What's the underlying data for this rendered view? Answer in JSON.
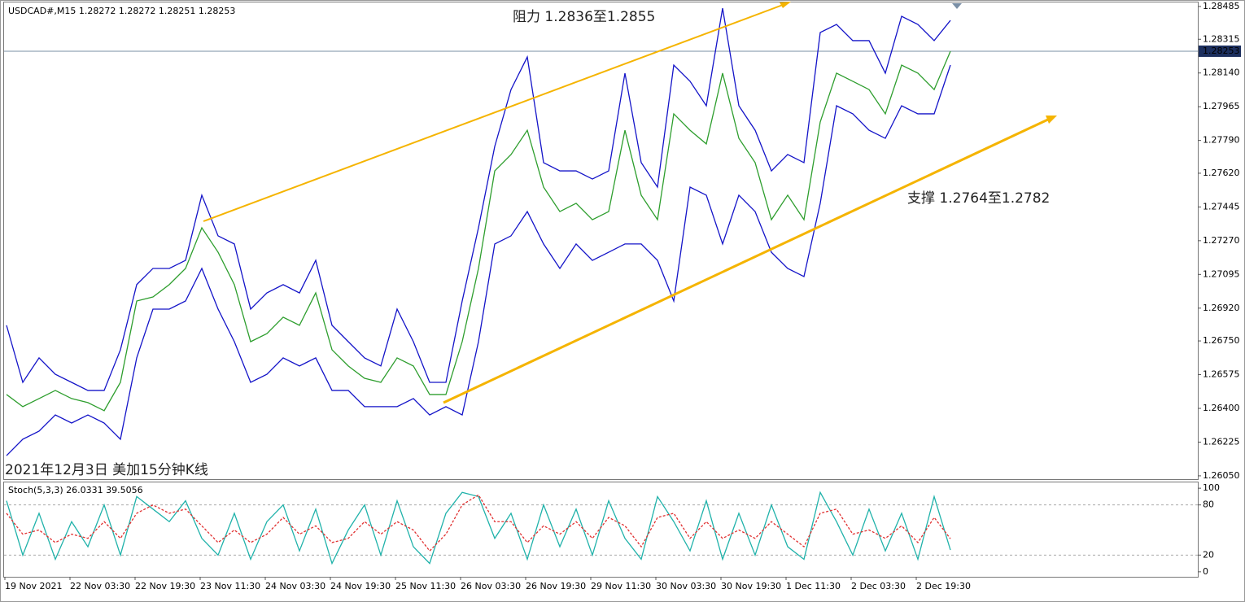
{
  "chart_data": [
    {
      "type": "line",
      "title": "USDCAD#,M15",
      "ohlc": [
        1.28272,
        1.28272,
        1.28251,
        1.28253
      ],
      "current_price": 1.28253,
      "annotations": [
        "阻力 1.2836至1.2855",
        "支撑 1.2764至1.2782",
        "2021年12月3日 美加15分钟K线"
      ],
      "categories": [
        "19 Nov 2021",
        null,
        null,
        null,
        "22 Nov 03:30",
        null,
        null,
        null,
        "22 Nov 19:30",
        null,
        null,
        null,
        "23 Nov 11:30",
        null,
        null,
        null,
        "24 Nov 03:30",
        null,
        null,
        null,
        "24 Nov 19:30",
        null,
        null,
        null,
        "25 Nov 11:30",
        null,
        null,
        null,
        "26 Nov 03:30",
        null,
        null,
        null,
        "26 Nov 19:30",
        null,
        null,
        null,
        "29 Nov 11:30",
        null,
        null,
        null,
        "30 Nov 03:30",
        null,
        null,
        null,
        "30 Nov 19:30",
        null,
        null,
        null,
        "1 Dec 11:30",
        null,
        null,
        null,
        "2 Dec 03:30",
        null,
        null,
        null,
        "2 Dec 19:30",
        null,
        null
      ],
      "series": [
        {
          "color": "#1414c8",
          "values": [
            1.26831,
            1.26535,
            1.26662,
            1.26577,
            1.26535,
            1.26493,
            1.26493,
            1.26704,
            1.27042,
            1.27126,
            1.27126,
            1.27168,
            1.27506,
            1.27295,
            1.27253,
            1.26915,
            1.26999,
            1.27042,
            1.26999,
            1.27168,
            1.26831,
            1.26746,
            1.26662,
            1.2662,
            1.26915,
            1.26746,
            1.26535,
            1.26535,
            1.26957,
            1.27337,
            1.27759,
            1.28054,
            1.28223,
            1.27675,
            1.27632,
            1.27632,
            1.2759,
            1.27632,
            1.28139,
            1.27675,
            1.27548,
            1.28181,
            1.28097,
            1.2797,
            1.28476,
            1.2797,
            1.27843,
            1.27632,
            1.27717,
            1.27675,
            1.2835,
            1.28392,
            1.28308,
            1.28308,
            1.28139,
            1.28434,
            1.28392,
            1.28308,
            1.28413
          ]
        },
        {
          "color": "#2e9e2e",
          "values": [
            1.26472,
            1.26409,
            1.26451,
            1.26493,
            1.26451,
            1.2643,
            1.26388,
            1.26535,
            1.26957,
            1.26978,
            1.27042,
            1.27126,
            1.27337,
            1.2721,
            1.27042,
            1.26746,
            1.26788,
            1.26873,
            1.26831,
            1.26999,
            1.26704,
            1.2662,
            1.26556,
            1.26535,
            1.26662,
            1.2662,
            1.26472,
            1.26472,
            1.26746,
            1.27126,
            1.27632,
            1.27717,
            1.27843,
            1.27548,
            1.27421,
            1.27464,
            1.27379,
            1.27421,
            1.27843,
            1.27506,
            1.27379,
            1.27928,
            1.27843,
            1.27772,
            1.28139,
            1.27801,
            1.27675,
            1.27379,
            1.27506,
            1.27379,
            1.27886,
            1.28139,
            1.28097,
            1.28054,
            1.27928,
            1.28181,
            1.28139,
            1.28054,
            1.28253
          ]
        },
        {
          "color": "#1414c8",
          "values": [
            1.26155,
            1.2624,
            1.26282,
            1.26366,
            1.26324,
            1.26366,
            1.26324,
            1.2624,
            1.26662,
            1.26915,
            1.26915,
            1.26957,
            1.27126,
            1.26915,
            1.26746,
            1.26535,
            1.26577,
            1.26662,
            1.2662,
            1.26662,
            1.26493,
            1.26493,
            1.26409,
            1.26409,
            1.26409,
            1.26451,
            1.26366,
            1.26409,
            1.26366,
            1.26746,
            1.27253,
            1.27295,
            1.27421,
            1.27253,
            1.27126,
            1.27253,
            1.27168,
            1.2721,
            1.27253,
            1.27253,
            1.27168,
            1.26957,
            1.27548,
            1.27506,
            1.27253,
            1.27506,
            1.27421,
            1.2721,
            1.27126,
            1.27084,
            1.27464,
            1.2797,
            1.27928,
            1.27843,
            1.27801,
            1.2797,
            1.27928,
            1.27928,
            1.28181
          ]
        }
      ],
      "ylim": [
        1.26037,
        1.28506
      ],
      "yticks": [
        1.28485,
        1.28315,
        {
          "value": 1.2814,
          "label": "1.28140"
        },
        1.27965,
        {
          "value": 1.2779,
          "label": "1.27790"
        },
        {
          "value": 1.2762,
          "label": "1.27620"
        },
        1.27445,
        {
          "value": 1.2727,
          "label": "1.27270"
        },
        1.27095,
        {
          "value": 1.2692,
          "label": "1.26920"
        },
        {
          "value": 1.2675,
          "label": "1.26750"
        },
        1.26575,
        {
          "value": 1.264,
          "label": "1.26400"
        },
        1.26225,
        {
          "value": 1.2605,
          "label": "1.26050"
        }
      ]
    },
    {
      "type": "line",
      "title": "Stoch(5,3,3)",
      "series": [
        {
          "color": "#20b2aa",
          "values": [
            85,
            20,
            70,
            15,
            60,
            30,
            80,
            20,
            90,
            75,
            60,
            85,
            40,
            20,
            70,
            15,
            60,
            80,
            25,
            75,
            10,
            50,
            80,
            20,
            85,
            30,
            10,
            70,
            95,
            90,
            40,
            70,
            15,
            80,
            30,
            75,
            20,
            85,
            40,
            15,
            90,
            60,
            25,
            85,
            15,
            70,
            20,
            80,
            30,
            15,
            95,
            60,
            20,
            75,
            25,
            70,
            15,
            90,
            26.0331
          ]
        },
        {
          "color": "#e03030",
          "dash": true,
          "values": [
            70,
            45,
            50,
            35,
            45,
            40,
            60,
            40,
            70,
            80,
            70,
            75,
            55,
            35,
            50,
            35,
            45,
            65,
            45,
            55,
            35,
            40,
            60,
            45,
            60,
            50,
            25,
            45,
            80,
            92,
            60,
            60,
            35,
            55,
            45,
            60,
            40,
            65,
            55,
            30,
            65,
            70,
            40,
            60,
            40,
            50,
            40,
            60,
            45,
            30,
            70,
            75,
            45,
            50,
            40,
            55,
            35,
            65,
            39.5056
          ]
        }
      ],
      "ylim": [
        -5,
        105
      ],
      "yticks": [
        0,
        20,
        80,
        100
      ]
    }
  ]
}
